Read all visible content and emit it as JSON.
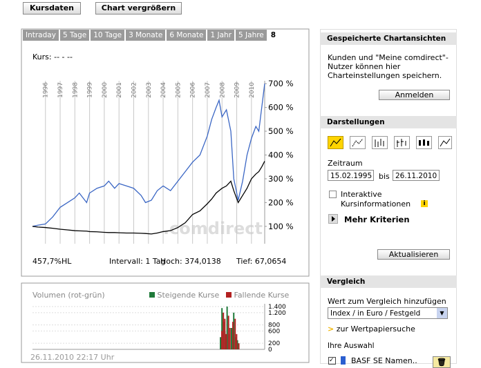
{
  "toolbar": {
    "buttons": [
      "Kursdaten",
      "Chart vergrößern"
    ]
  },
  "chart_panel": {
    "tabs": [
      "Intraday",
      "5 Tage",
      "10 Tage",
      "3 Monate",
      "6 Monate",
      "1 Jahr",
      "5 Jahre",
      "8"
    ],
    "kurs_label": "Kurs: -- - --",
    "watermark": ".comdirect",
    "chart_data": {
      "type": "line",
      "x": [
        1995.12,
        1995.5,
        1996,
        1996.5,
        1997,
        1997.5,
        1998,
        1998.3,
        1998.8,
        1999,
        1999.5,
        2000,
        2000.3,
        2000.7,
        2001,
        2001.5,
        2002,
        2002.5,
        2002.8,
        2003.2,
        2003.6,
        2004,
        2004.5,
        2005,
        2005.5,
        2006,
        2006.5,
        2007,
        2007.3,
        2007.6,
        2007.8,
        2008,
        2008.3,
        2008.6,
        2008.8,
        2009.1,
        2009.4,
        2009.7,
        2010,
        2010.3,
        2010.5,
        2010.7,
        2010.9
      ],
      "series": [
        {
          "color": "#3a66c4",
          "values": [
            100,
            105,
            110,
            140,
            180,
            200,
            220,
            240,
            200,
            240,
            260,
            270,
            290,
            260,
            280,
            270,
            260,
            230,
            200,
            210,
            250,
            270,
            250,
            290,
            330,
            370,
            400,
            480,
            550,
            600,
            630,
            560,
            590,
            500,
            300,
            210,
            290,
            400,
            470,
            520,
            500,
            600,
            700
          ]
        },
        {
          "color": "#000000",
          "values": [
            100,
            97,
            95,
            92,
            88,
            85,
            82,
            81,
            80,
            78,
            77,
            75,
            74,
            74,
            73,
            72,
            72,
            71,
            70,
            68,
            72,
            78,
            82,
            95,
            115,
            150,
            165,
            195,
            215,
            240,
            250,
            260,
            270,
            290,
            250,
            200,
            230,
            260,
            300,
            320,
            330,
            350,
            374
          ]
        }
      ],
      "xlim": [
        1995.12,
        2010.9
      ],
      "xticks": [
        1996,
        1997,
        1998,
        1999,
        2000,
        2001,
        2002,
        2003,
        2004,
        2005,
        2006,
        2007,
        2008,
        2009,
        2010
      ],
      "ylim": [
        27,
        712
      ],
      "yticks": [
        {
          "value": 100,
          "label": "100 %"
        },
        {
          "value": 200,
          "label": "200 %"
        },
        {
          "value": 300,
          "label": "300 %"
        },
        {
          "value": 400,
          "label": "400 %"
        },
        {
          "value": 500,
          "label": "500 %"
        },
        {
          "value": 600,
          "label": "600 %"
        },
        {
          "value": 700,
          "label": "700 %"
        }
      ]
    },
    "stats": [
      "457,7%HL",
      "Intervall: 1 Tag",
      "Hoch: 374,0138",
      "Tief: 67,0654"
    ]
  },
  "volume_panel": {
    "chart_data": {
      "type": "bar",
      "title": "Volumen (rot-grün)",
      "x": [
        2007.85,
        2007.95,
        2008.05,
        2008.15,
        2008.3,
        2008.4,
        2008.6,
        2008.75,
        2008.85,
        2009.0
      ],
      "series": [
        {
          "name": "Steigende Kurse",
          "color": "#1f7a3a",
          "values": [
            400,
            1350,
            900,
            600,
            1400,
            500,
            700,
            1200,
            400,
            300
          ]
        },
        {
          "name": "Fallende Kurse",
          "color": "#b22020",
          "values": [
            600,
            1200,
            1000,
            500,
            1100,
            700,
            900,
            1000,
            500,
            200
          ]
        }
      ],
      "xlim": [
        1995.12,
        2010.9
      ],
      "ylim": [
        0,
        1490
      ],
      "yticks": [
        {
          "value": 1400,
          "label": "1.400"
        },
        {
          "value": 1200,
          "label": "1.200"
        },
        800,
        600,
        200,
        0
      ]
    },
    "timestamp": "26.11.2010 22:17 Uhr"
  },
  "sidebar": {
    "saved": {
      "header": "Gespeicherte Chartansichten",
      "text": "Kunden und \"Meine comdirect\"-Nutzer können hier Charteinstellungen speichern.",
      "button": "Anmelden"
    },
    "display": {
      "header": "Darstellungen",
      "zeitraum": "Zeitraum",
      "from": "15.02.1995",
      "bis": "bis",
      "to": "26.11.2010",
      "interactive": "Interaktive Kursinformationen",
      "info": "i",
      "more": "Mehr Kriterien",
      "button": "Aktualisieren"
    },
    "compare": {
      "header": "Vergleich",
      "label": "Wert zum Vergleich hinzufügen",
      "select": "Index / in Euro / Festgeld",
      "search": "zur Wertpapiersuche",
      "selection": "Ihre Auswahl",
      "item": "BASF SE Namen.."
    }
  }
}
